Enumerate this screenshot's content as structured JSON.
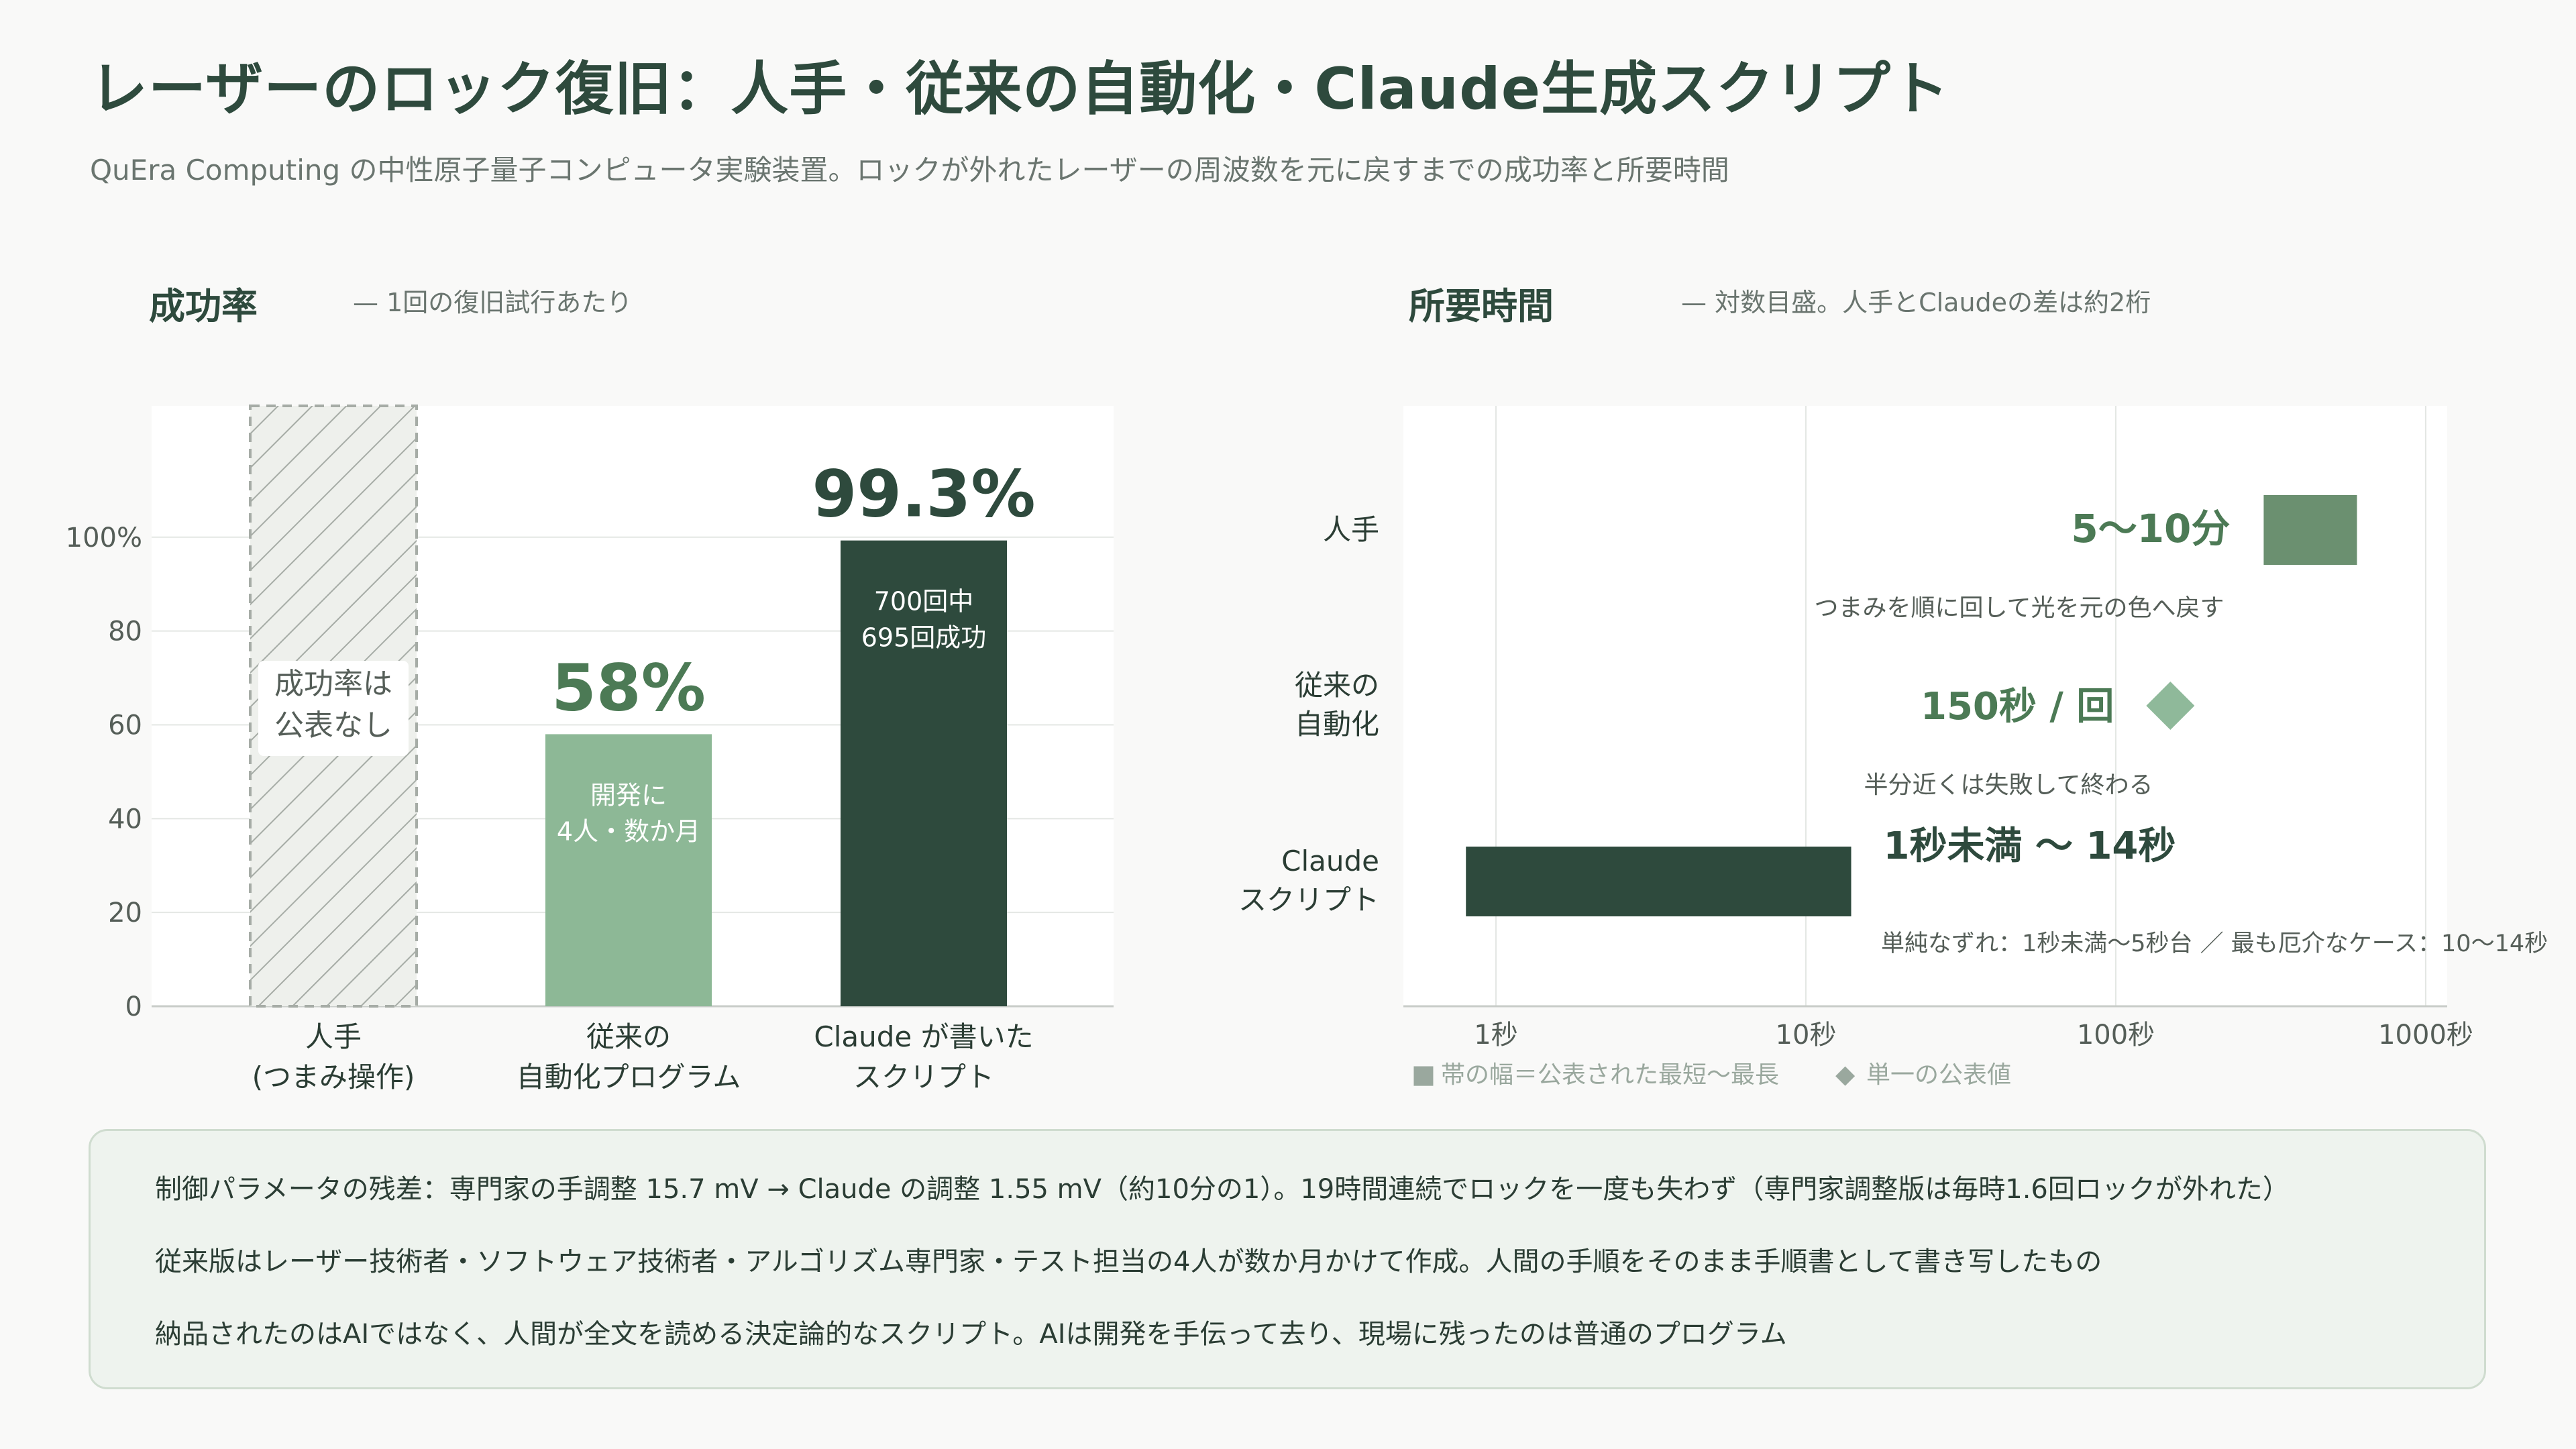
{
  "header": {
    "title": "レーザーのロック復旧：人手・従来の自動化・Claude生成スクリプト",
    "subtitle": "QuEra Computing の中性原子量子コンピュータ実験装置。ロックが外れたレーザーの周波数を元に戻すまでの成功率と所要時間"
  },
  "colors": {
    "dark": "#2e4a3d",
    "mid": "#6b9070",
    "light": "#8db896",
    "diamond": "#8fb99a",
    "grid": "#e4e7e4",
    "axis": "#c8ccc8",
    "tick_text": "#555e58",
    "hatch": "#a6aca6"
  },
  "chart_data": [
    {
      "type": "bar",
      "section_title": "成功率",
      "section_note": "— 1回の復旧試行あたり",
      "categories": [
        [
          "人手",
          "(つまみ操作)"
        ],
        [
          "従来の",
          "自動化プログラム"
        ],
        [
          "Claude が書いた",
          "スクリプト"
        ]
      ],
      "values": [
        null,
        58,
        99.3
      ],
      "value_labels": [
        "",
        "58%",
        "99.3%"
      ],
      "inner_labels": [
        [
          "成功率は",
          "公表なし"
        ],
        [
          "開発に",
          "4人・数か月"
        ],
        [
          "700回中",
          "695回成功"
        ]
      ],
      "bar_colors": [
        "hatch",
        "light",
        "dark"
      ],
      "ylim": [
        0,
        100
      ],
      "yticks": [
        0,
        20,
        40,
        60,
        80,
        100
      ],
      "ytick_labels": [
        "0",
        "20",
        "40",
        "60",
        "80",
        "100%"
      ],
      "grid": true
    },
    {
      "type": "range",
      "section_title": "所要時間",
      "section_note": "— 対数目盛。人手とClaudeの差は約2桁",
      "x_scale": "log",
      "xlim_seconds": [
        0.8,
        1200
      ],
      "xticks_seconds": [
        1,
        10,
        100,
        1000
      ],
      "xtick_labels": [
        "1秒",
        "10秒",
        "100秒",
        "1000秒"
      ],
      "rows": [
        {
          "label": [
            "人手"
          ],
          "kind": "band",
          "min_seconds": 300,
          "max_seconds": 600,
          "value_label": "5〜10分",
          "note": "つまみを順に回して光を元の色へ戻す",
          "color": "mid"
        },
        {
          "label": [
            "従来の",
            "自動化"
          ],
          "kind": "point",
          "value_seconds": 150,
          "value_label": "150秒 / 回",
          "note": "半分近くは失敗して終わる",
          "color": "diamond"
        },
        {
          "label": [
            "Claude",
            "スクリプト"
          ],
          "kind": "band",
          "min_seconds": 0.8,
          "max_seconds": 14,
          "value_label": "1秒未満 〜 14秒",
          "note": "単純なずれ：1秒未満〜5秒台 ／ 最も厄介なケース：10〜14秒",
          "color": "dark"
        }
      ],
      "legend": [
        {
          "symbol": "■",
          "text": "帯の幅＝公表された最短〜最長"
        },
        {
          "symbol": "◆",
          "text": "単一の公表値"
        }
      ],
      "legend_position": "bottom-left",
      "grid": true
    }
  ],
  "notes": [
    "制御パラメータの残差：専門家の手調整 15.7 mV → Claude の調整 1.55 mV（約10分の1）。19時間連続でロックを一度も失わず（専門家調整版は毎時1.6回ロックが外れた）",
    "従来版はレーザー技術者・ソフトウェア技術者・アルゴリズム専門家・テスト担当の4人が数か月かけて作成。人間の手順をそのまま手順書として書き写したもの",
    "納品されたのはAIではなく、人間が全文を読める決定論的なスクリプト。AIは開発を手伝って去り、現場に残ったのは普通のプログラム"
  ]
}
